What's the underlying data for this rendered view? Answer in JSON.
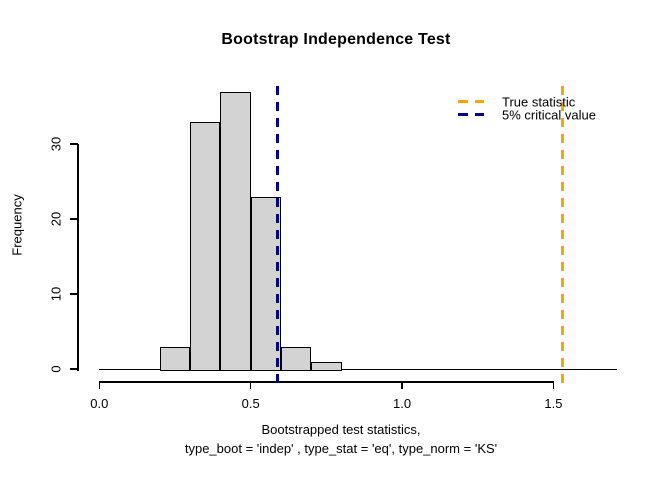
{
  "title": "Bootstrap Independence Test",
  "chart_data": {
    "type": "bar",
    "subtype": "histogram",
    "title": "Bootstrap Independence Test",
    "ylabel": "Frequency",
    "xlabel_line1": "Bootstrapped test statistics,",
    "xlabel_line2": "type_boot = 'indep' , type_stat = 'eq', type_norm = 'KS'",
    "bins": {
      "start": 0.2,
      "bin_width": 0.1,
      "edges": [
        0.2,
        0.3,
        0.4,
        0.5,
        0.6,
        0.7,
        0.8
      ],
      "counts": [
        3,
        33,
        37,
        23,
        3,
        1
      ]
    },
    "x_ticks": [
      {
        "value": 0.0,
        "label": "0.0"
      },
      {
        "value": 0.5,
        "label": "0.5"
      },
      {
        "value": 1.0,
        "label": "1.0"
      },
      {
        "value": 1.5,
        "label": "1.5"
      }
    ],
    "y_ticks": [
      {
        "value": 0,
        "label": "0"
      },
      {
        "value": 10,
        "label": "10"
      },
      {
        "value": 20,
        "label": "20"
      },
      {
        "value": 30,
        "label": "30"
      }
    ],
    "xlim": [
      0.0,
      1.71
    ],
    "ylim": [
      0,
      37
    ],
    "grid": false,
    "bar_fill": "#d3d3d3",
    "bar_border": "#000000",
    "baseline_y": 0,
    "vlines": [
      {
        "name": "true-statistic-line",
        "value": 1.53,
        "color": "#ffa500",
        "style": "dashed"
      },
      {
        "name": "critical-value-line",
        "value": 0.59,
        "color": "#00008b",
        "style": "dashed"
      }
    ],
    "legend": {
      "position": "top-right",
      "border": false,
      "items": [
        {
          "label": "True statistic",
          "color": "#ffa500",
          "style": "dashed"
        },
        {
          "label": "5% critical value",
          "color": "#00008b",
          "style": "dashed"
        }
      ]
    }
  }
}
